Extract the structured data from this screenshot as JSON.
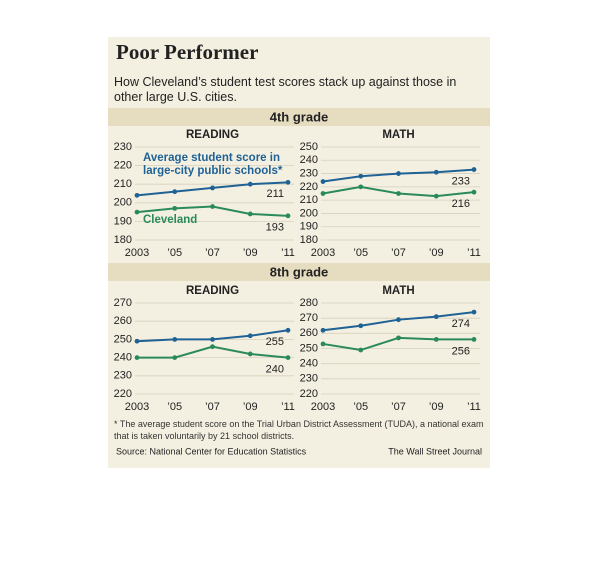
{
  "title": "Poor Performer",
  "subtitle": "How Cleveland’s student test scores stack up against those in other large U.S. cities.",
  "sections": [
    {
      "heading": "4th grade"
    },
    {
      "heading": "8th grade"
    }
  ],
  "footnote": "* The average student score on the Trial Urban District Assessment (TUDA), a national exam that is taken voluntarily by 21 school districts.",
  "source": "Source: National Center for Education Statistics",
  "credit": "The Wall Street Journal",
  "chart_data": [
    {
      "type": "line",
      "title": "READING",
      "categories": [
        "2003",
        "’05",
        "’07",
        "’09",
        "’11"
      ],
      "ylim": [
        180,
        230
      ],
      "yticks": [
        180,
        190,
        200,
        210,
        220,
        230
      ],
      "grid": true,
      "series": [
        {
          "name": "Average student score in large-city public schools*",
          "color": "#1f6296",
          "values": [
            204,
            206,
            208,
            210,
            211
          ]
        },
        {
          "name": "Cleveland",
          "color": "#2a8a5a",
          "values": [
            195,
            197,
            198,
            194,
            193
          ]
        }
      ]
    },
    {
      "type": "line",
      "title": "MATH",
      "categories": [
        "2003",
        "’05",
        "’07",
        "’09",
        "’11"
      ],
      "ylim": [
        180,
        250
      ],
      "yticks": [
        180,
        190,
        200,
        210,
        220,
        230,
        240,
        250
      ],
      "grid": true,
      "series": [
        {
          "color": "#1f6296",
          "values": [
            224,
            228,
            230,
            231,
            233
          ]
        },
        {
          "color": "#2a8a5a",
          "values": [
            215,
            220,
            215,
            213,
            216
          ]
        }
      ]
    },
    {
      "type": "line",
      "title": "READING",
      "categories": [
        "2003",
        "’05",
        "’07",
        "’09",
        "’11"
      ],
      "ylim": [
        220,
        270
      ],
      "yticks": [
        220,
        230,
        240,
        250,
        260,
        270
      ],
      "grid": true,
      "series": [
        {
          "color": "#1f6296",
          "values": [
            249,
            250,
            250,
            252,
            255
          ]
        },
        {
          "color": "#2a8a5a",
          "values": [
            240,
            240,
            246,
            242,
            240
          ]
        }
      ]
    },
    {
      "type": "line",
      "title": "MATH",
      "categories": [
        "2003",
        "’05",
        "’07",
        "’09",
        "’11"
      ],
      "ylim": [
        220,
        280
      ],
      "yticks": [
        220,
        230,
        240,
        250,
        260,
        270,
        280
      ],
      "grid": true,
      "series": [
        {
          "color": "#1f6296",
          "values": [
            262,
            265,
            269,
            271,
            274
          ]
        },
        {
          "color": "#2a8a5a",
          "values": [
            253,
            249,
            257,
            256,
            256
          ]
        }
      ]
    }
  ]
}
